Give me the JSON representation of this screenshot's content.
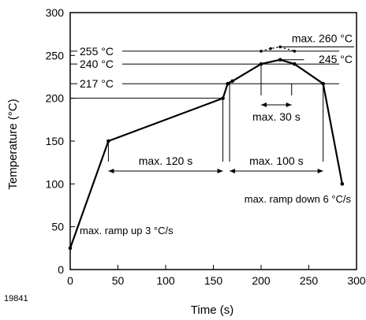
{
  "figure_id": "19841",
  "chart_data": {
    "type": "line",
    "xlabel": "Time (s)",
    "ylabel": "Temperature (°C)",
    "xlim": [
      0,
      300
    ],
    "ylim": [
      0,
      300
    ],
    "xticks": [
      0,
      50,
      100,
      150,
      200,
      250,
      300
    ],
    "yticks": [
      0,
      50,
      100,
      150,
      200,
      250,
      300
    ],
    "grid": false,
    "series": [
      {
        "style": "solid",
        "x": [
          0,
          40,
          160,
          165,
          170,
          200,
          220,
          235,
          265,
          285
        ],
        "y": [
          25,
          150,
          200,
          217,
          220,
          240,
          245,
          240,
          217,
          100
        ]
      },
      {
        "style": "dotted",
        "x": [
          200,
          210,
          220,
          235
        ],
        "y": [
          255,
          258,
          260,
          255
        ]
      }
    ],
    "reference_lines": [
      {
        "label": "255 °C",
        "y": 255
      },
      {
        "label": "240 °C",
        "y": 240
      },
      {
        "label": "217 °C",
        "y": 217
      },
      {
        "y": 200
      }
    ],
    "peak_labels": [
      {
        "label": "max. 260 °C",
        "y": 260
      },
      {
        "label": "245 °C",
        "y": 245
      }
    ],
    "intervals": [
      {
        "label": "max. 120 s",
        "x_start": 40,
        "x_end": 160
      },
      {
        "label": "max. 100 s",
        "x_start": 167,
        "x_end": 265
      },
      {
        "label": "max. 30 s",
        "x_start": 200,
        "x_end": 232
      }
    ],
    "annotations": {
      "ramp_up": "max. ramp up 3 °C/s",
      "ramp_down": "max. ramp down 6 °C/s"
    }
  }
}
